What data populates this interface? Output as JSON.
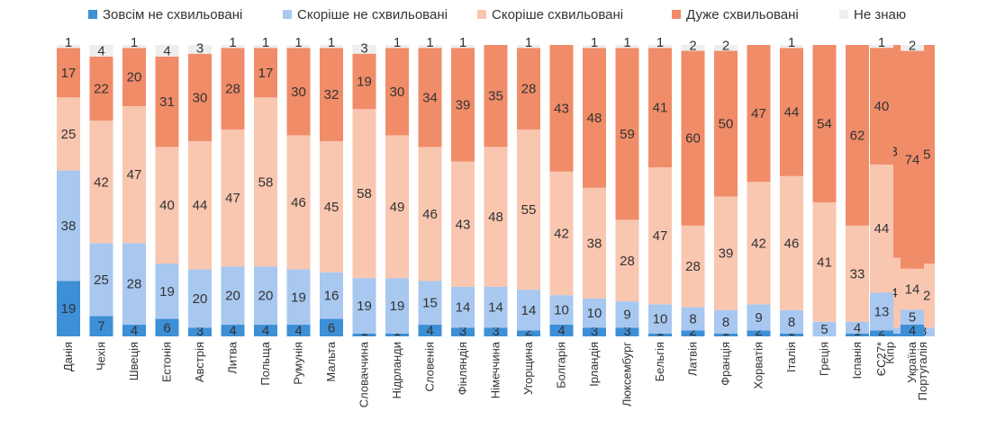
{
  "chart_data": {
    "type": "bar",
    "stacked": true,
    "percent": true,
    "grid": false,
    "legend_position": "top",
    "title": "",
    "xlabel": "",
    "ylabel": "",
    "ylim": [
      0,
      100
    ],
    "categories": [
      "Данія",
      "Чехія",
      "Швеція",
      "Естонія",
      "Австрія",
      "Литва",
      "Польща",
      "Румунія",
      "Мальта",
      "Словаччина",
      "Нідрланди",
      "Словенія",
      "Фінляндія",
      "Німеччина",
      "Угорщина",
      "Болгарія",
      "Ірландія",
      "Люксембург",
      "Бельгія",
      "Латвія",
      "Франція",
      "Хорватія",
      "Італія",
      "Греція",
      "Іспанія",
      "Кіпр",
      "Португалія",
      "ЄС27*",
      "Україна"
    ],
    "series": [
      {
        "name": "Зовсім не схвильовані",
        "color": "#3d8fd6",
        "values": [
          19,
          7,
          4,
          6,
          3,
          4,
          4,
          4,
          6,
          1,
          1,
          4,
          3,
          3,
          2,
          4,
          3,
          3,
          1,
          2,
          1,
          2,
          1,
          0,
          1,
          1,
          0,
          2,
          4
        ]
      },
      {
        "name": "Скоріше не схвильовані",
        "color": "#a8c8f0",
        "values": [
          38,
          25,
          28,
          19,
          20,
          20,
          20,
          19,
          16,
          19,
          19,
          15,
          14,
          14,
          14,
          10,
          10,
          9,
          10,
          8,
          8,
          9,
          8,
          5,
          4,
          2,
          3,
          13,
          5
        ]
      },
      {
        "name": "Скоріше схвильовані",
        "color": "#f9c6b0",
        "values": [
          25,
          42,
          47,
          40,
          44,
          47,
          58,
          46,
          45,
          58,
          49,
          46,
          43,
          48,
          55,
          42,
          38,
          28,
          47,
          28,
          39,
          42,
          46,
          41,
          33,
          24,
          22,
          44,
          14
        ]
      },
      {
        "name": "Дуже схвильовані",
        "color": "#f08c68",
        "values": [
          17,
          22,
          20,
          31,
          30,
          28,
          17,
          30,
          32,
          19,
          30,
          34,
          39,
          35,
          28,
          43,
          48,
          59,
          41,
          60,
          50,
          47,
          44,
          54,
          62,
          73,
          75,
          40,
          74
        ]
      },
      {
        "name": "Не знаю",
        "color": "#eeeeee",
        "values": [
          1,
          4,
          1,
          4,
          3,
          1,
          1,
          1,
          1,
          3,
          1,
          1,
          1,
          0,
          1,
          0,
          1,
          1,
          1,
          2,
          2,
          0,
          1,
          0,
          0,
          0,
          0,
          1,
          2
        ]
      }
    ]
  }
}
